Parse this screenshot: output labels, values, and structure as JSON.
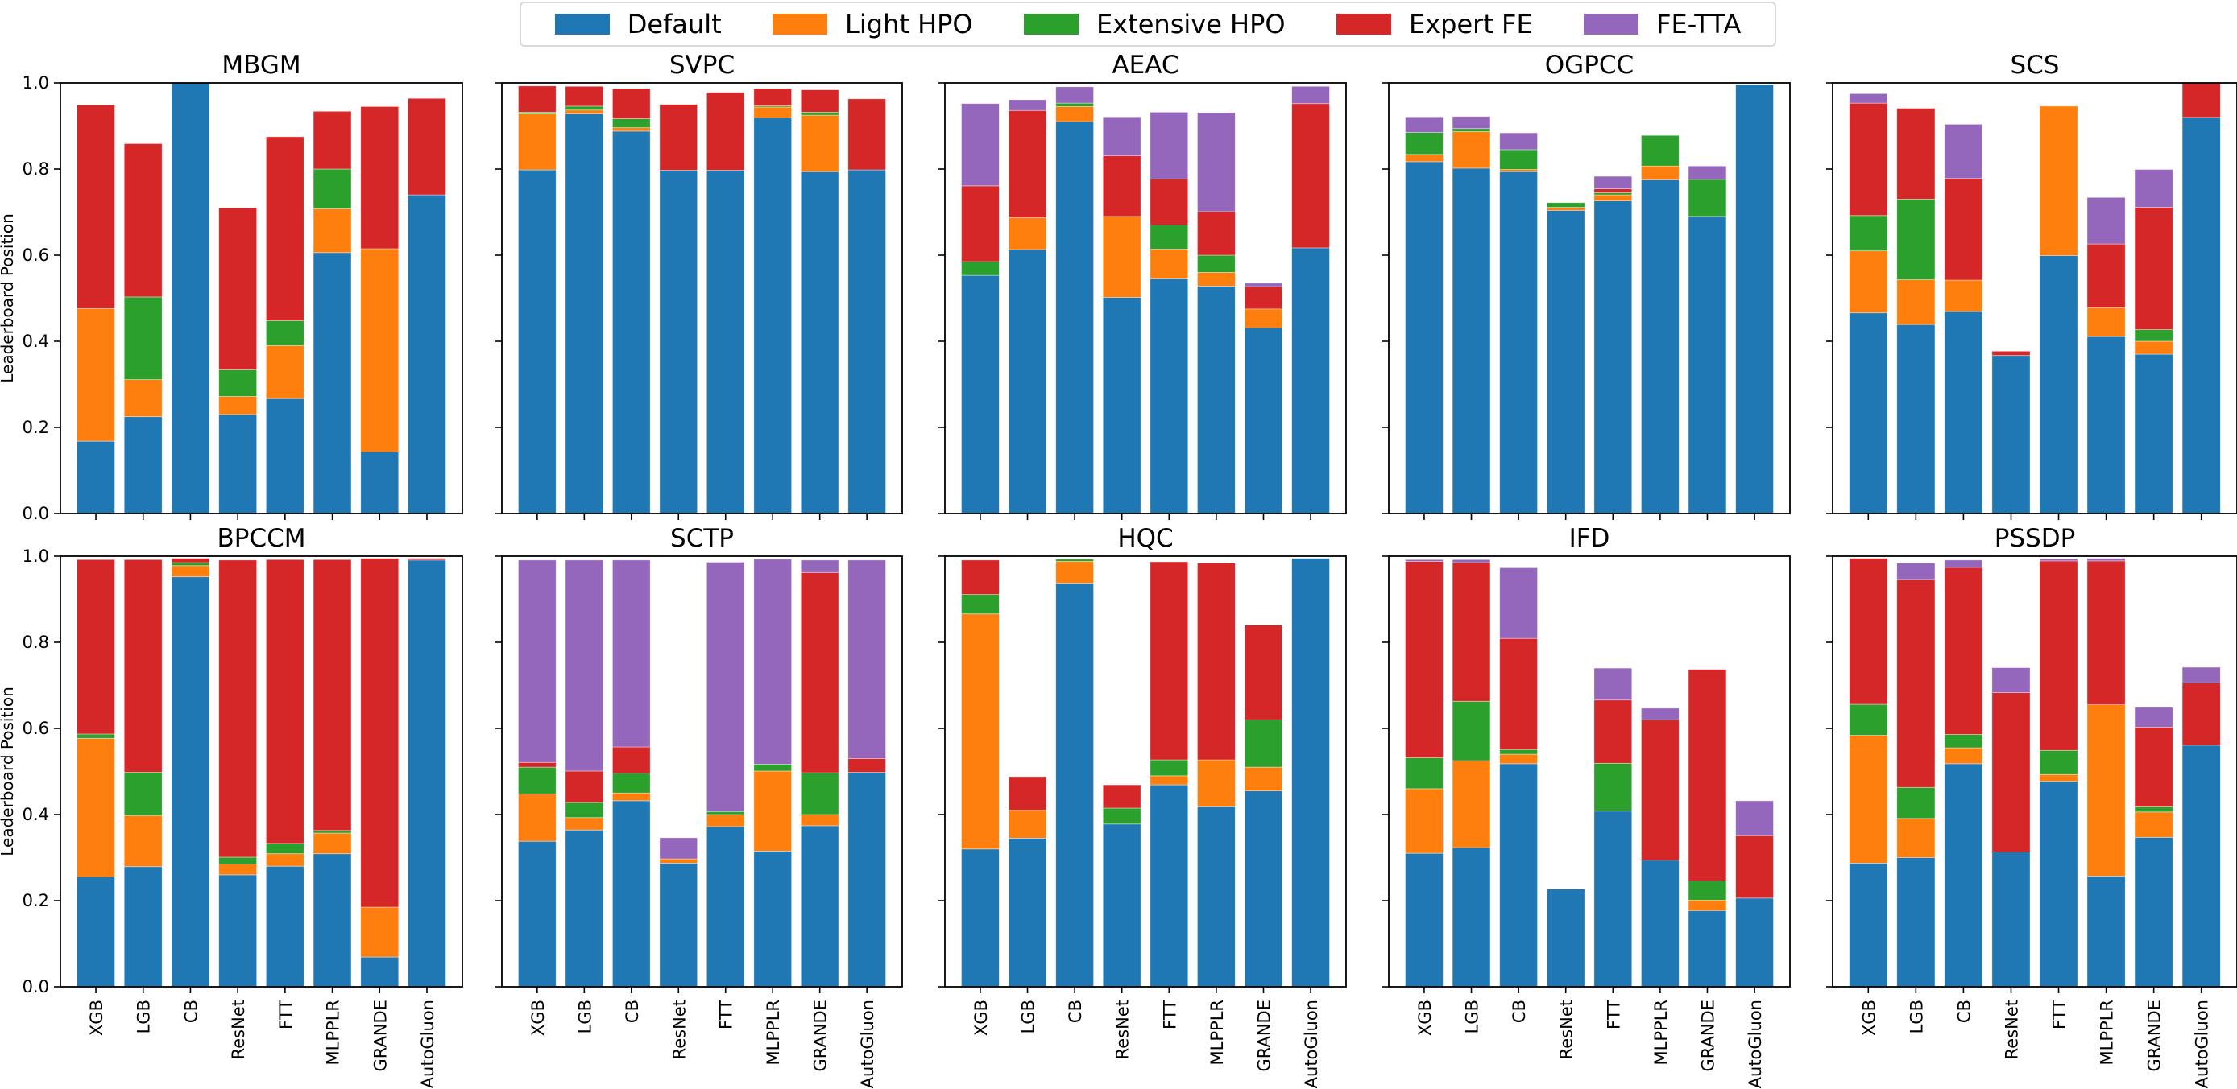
{
  "legend": {
    "items": [
      {
        "label": "Default",
        "color": "#1f77b4"
      },
      {
        "label": "Light HPO",
        "color": "#ff7f0e"
      },
      {
        "label": "Extensive HPO",
        "color": "#2ca02c"
      },
      {
        "label": "Expert FE",
        "color": "#d62728"
      },
      {
        "label": "FE-TTA",
        "color": "#9467bd"
      }
    ]
  },
  "chart_data": {
    "type": "bar",
    "stacked": true,
    "ylabel": "Leaderboard Position",
    "ylim": [
      0,
      1
    ],
    "yticks": [
      "0.0",
      "0.2",
      "0.4",
      "0.6",
      "0.8",
      "1.0"
    ],
    "categories": [
      "XGB",
      "LGB",
      "CB",
      "ResNet",
      "FTT",
      "MLPPLR",
      "GRANDE",
      "AutoGluon"
    ],
    "series_names": [
      "Default",
      "Light HPO",
      "Extensive HPO",
      "Expert FE",
      "FE-TTA"
    ],
    "legend_position": "top-center",
    "note": "Each panel lists cumulative top values per stacked segment (Default, +Light HPO, +Extensive HPO, +Expert FE, +FE-TTA) for each category.",
    "panels": [
      {
        "title": "MBGM",
        "cumulative": [
          [
            0.168,
            0.476,
            0.476,
            0.949,
            0.949
          ],
          [
            0.225,
            0.311,
            0.503,
            0.859,
            0.859
          ],
          [
            1.0,
            1.0,
            1.0,
            1.0,
            1.0
          ],
          [
            0.23,
            0.272,
            0.334,
            0.71,
            0.71
          ],
          [
            0.267,
            0.39,
            0.448,
            0.875,
            0.875
          ],
          [
            0.606,
            0.708,
            0.8,
            0.934,
            0.934
          ],
          [
            0.143,
            0.615,
            0.615,
            0.945,
            0.945
          ],
          [
            0.74,
            0.74,
            0.74,
            0.964,
            0.964
          ]
        ]
      },
      {
        "title": "SVPC",
        "cumulative": [
          [
            0.798,
            0.928,
            0.932,
            0.993,
            0.993
          ],
          [
            0.928,
            0.937,
            0.946,
            0.992,
            0.992
          ],
          [
            0.888,
            0.896,
            0.917,
            0.987,
            0.987
          ],
          [
            0.797,
            0.797,
            0.797,
            0.95,
            0.95
          ],
          [
            0.797,
            0.797,
            0.797,
            0.978,
            0.978
          ],
          [
            0.919,
            0.944,
            0.947,
            0.987,
            0.987
          ],
          [
            0.794,
            0.925,
            0.932,
            0.984,
            0.984
          ],
          [
            0.798,
            0.798,
            0.798,
            0.963,
            0.963
          ]
        ]
      },
      {
        "title": "AEAC",
        "cumulative": [
          [
            0.553,
            0.553,
            0.585,
            0.761,
            0.952
          ],
          [
            0.613,
            0.687,
            0.687,
            0.936,
            0.961
          ],
          [
            0.91,
            0.945,
            0.953,
            0.953,
            0.991
          ],
          [
            0.502,
            0.69,
            0.69,
            0.831,
            0.921
          ],
          [
            0.545,
            0.614,
            0.67,
            0.777,
            0.932
          ],
          [
            0.528,
            0.56,
            0.6,
            0.701,
            0.931
          ],
          [
            0.431,
            0.475,
            0.475,
            0.527,
            0.535
          ],
          [
            0.617,
            0.617,
            0.617,
            0.952,
            0.992
          ]
        ]
      },
      {
        "title": "OGPCC",
        "cumulative": [
          [
            0.817,
            0.834,
            0.885,
            0.885,
            0.921
          ],
          [
            0.802,
            0.887,
            0.894,
            0.894,
            0.922
          ],
          [
            0.794,
            0.799,
            0.845,
            0.845,
            0.884
          ],
          [
            0.704,
            0.711,
            0.722,
            0.722,
            0.722
          ],
          [
            0.726,
            0.74,
            0.745,
            0.754,
            0.783
          ],
          [
            0.775,
            0.807,
            0.878,
            0.878,
            0.878
          ],
          [
            0.69,
            0.69,
            0.776,
            0.776,
            0.807
          ],
          [
            0.996,
            0.996,
            0.996,
            0.996,
            0.996
          ]
        ]
      },
      {
        "title": "SCS",
        "cumulative": [
          [
            0.466,
            0.61,
            0.692,
            0.953,
            0.975
          ],
          [
            0.439,
            0.543,
            0.73,
            0.941,
            0.941
          ],
          [
            0.469,
            0.542,
            0.542,
            0.778,
            0.904
          ],
          [
            0.367,
            0.367,
            0.367,
            0.377,
            0.377
          ],
          [
            0.599,
            0.946,
            0.946,
            0.946,
            0.946
          ],
          [
            0.411,
            0.478,
            0.478,
            0.626,
            0.734
          ],
          [
            0.37,
            0.4,
            0.427,
            0.711,
            0.799
          ],
          [
            0.92,
            0.92,
            0.92,
            1.0,
            1.0
          ]
        ]
      },
      {
        "title": "BPCCM",
        "cumulative": [
          [
            0.255,
            0.577,
            0.587,
            0.992,
            0.992
          ],
          [
            0.279,
            0.398,
            0.498,
            0.992,
            0.992
          ],
          [
            0.952,
            0.978,
            0.985,
            0.995,
            0.995
          ],
          [
            0.26,
            0.285,
            0.301,
            0.991,
            0.991
          ],
          [
            0.28,
            0.309,
            0.333,
            0.992,
            0.992
          ],
          [
            0.309,
            0.357,
            0.363,
            0.992,
            0.992
          ],
          [
            0.069,
            0.185,
            0.185,
            0.995,
            0.995
          ],
          [
            0.991,
            0.991,
            0.991,
            0.995,
            0.995
          ]
        ]
      },
      {
        "title": "SCTP",
        "cumulative": [
          [
            0.338,
            0.448,
            0.51,
            0.521,
            0.991
          ],
          [
            0.364,
            0.393,
            0.428,
            0.501,
            0.991
          ],
          [
            0.432,
            0.45,
            0.496,
            0.557,
            0.991
          ],
          [
            0.287,
            0.297,
            0.297,
            0.297,
            0.346
          ],
          [
            0.372,
            0.4,
            0.407,
            0.407,
            0.986
          ],
          [
            0.315,
            0.501,
            0.517,
            0.517,
            0.993
          ],
          [
            0.374,
            0.4,
            0.497,
            0.962,
            0.991
          ],
          [
            0.498,
            0.498,
            0.498,
            0.53,
            0.991
          ]
        ]
      },
      {
        "title": "HQC",
        "cumulative": [
          [
            0.32,
            0.866,
            0.911,
            0.991,
            0.991
          ],
          [
            0.345,
            0.41,
            0.41,
            0.488,
            0.488
          ],
          [
            0.937,
            0.988,
            0.993,
            0.993,
            0.993
          ],
          [
            0.378,
            0.378,
            0.415,
            0.469,
            0.469
          ],
          [
            0.469,
            0.49,
            0.527,
            0.987,
            0.987
          ],
          [
            0.418,
            0.527,
            0.527,
            0.984,
            0.984
          ],
          [
            0.455,
            0.51,
            0.62,
            0.84,
            0.84
          ],
          [
            0.995,
            0.995,
            0.995,
            0.995,
            0.995
          ]
        ]
      },
      {
        "title": "IFD",
        "cumulative": [
          [
            0.31,
            0.46,
            0.532,
            0.988,
            0.992
          ],
          [
            0.323,
            0.525,
            0.663,
            0.985,
            0.992
          ],
          [
            0.518,
            0.54,
            0.551,
            0.809,
            0.973
          ],
          [
            0.227,
            0.227,
            0.227,
            0.227,
            0.227
          ],
          [
            0.408,
            0.408,
            0.519,
            0.666,
            0.74
          ],
          [
            0.294,
            0.294,
            0.294,
            0.62,
            0.647
          ],
          [
            0.177,
            0.201,
            0.246,
            0.737,
            0.737
          ],
          [
            0.206,
            0.206,
            0.206,
            0.351,
            0.432
          ]
        ]
      },
      {
        "title": "PSSDP",
        "cumulative": [
          [
            0.287,
            0.584,
            0.656,
            0.995,
            0.995
          ],
          [
            0.3,
            0.391,
            0.463,
            0.946,
            0.984
          ],
          [
            0.518,
            0.555,
            0.586,
            0.974,
            0.991
          ],
          [
            0.313,
            0.313,
            0.313,
            0.683,
            0.741
          ],
          [
            0.477,
            0.493,
            0.549,
            0.989,
            0.994
          ],
          [
            0.257,
            0.655,
            0.655,
            0.989,
            0.995
          ],
          [
            0.347,
            0.406,
            0.418,
            0.603,
            0.649
          ],
          [
            0.561,
            0.561,
            0.561,
            0.706,
            0.742
          ]
        ]
      }
    ]
  }
}
